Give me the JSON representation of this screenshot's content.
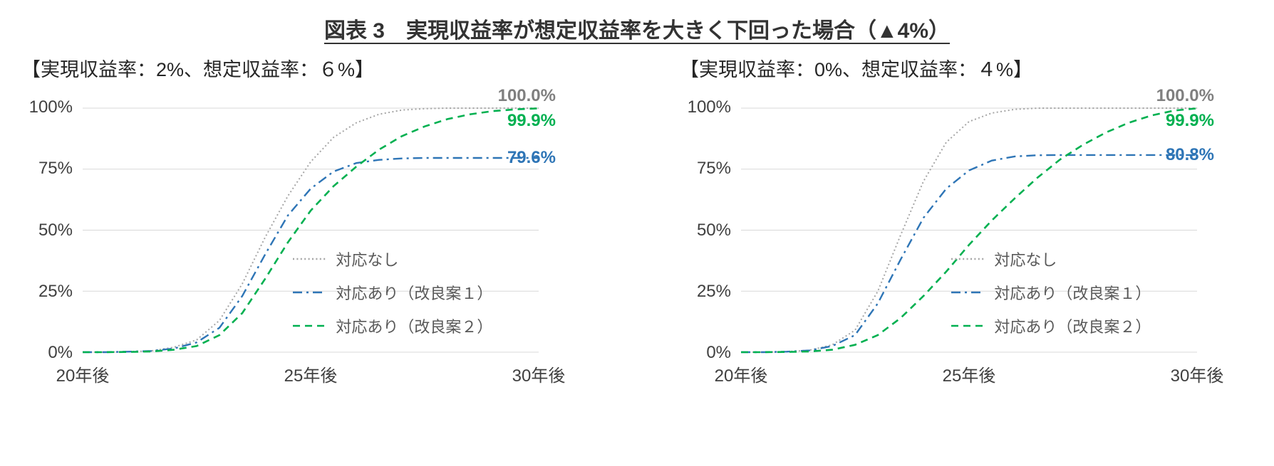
{
  "title": "図表 3　実現収益率が想定収益率を大きく下回った場合（▲4%）",
  "colors": {
    "grid": "#d9d9d9",
    "no_action_line": "#a6a6a6",
    "plan1_line": "#2e75b6",
    "plan2_line": "#00b050",
    "no_action_label": "#7f7f7f"
  },
  "panels": [
    {
      "subtitle": "【実現収益率：2%、想定収益率：６%】",
      "yticks": [
        "100%",
        "75%",
        "50%",
        "25%",
        "0%"
      ],
      "xticks": [
        "20年後",
        "25年後",
        "30年後"
      ],
      "end_labels": [
        {
          "text": "100.0%",
          "value": 100,
          "color": "#7f7f7f"
        },
        {
          "text": "99.9%",
          "value": 99.9,
          "color": "#00b050"
        },
        {
          "text": "79.6%",
          "value": 79.6,
          "color": "#2e75b6"
        }
      ],
      "chart_data": {
        "type": "line",
        "title": "【実現収益率：2%、想定収益率：６%】",
        "xlabel": "",
        "ylabel": "",
        "ylim": [
          0,
          100
        ],
        "y_format": "percent",
        "grid": true,
        "legend_position": "inside-lower-right",
        "x": [
          20,
          20.5,
          21,
          21.5,
          22,
          22.5,
          23,
          23.5,
          24,
          24.5,
          25,
          25.5,
          26,
          26.5,
          27,
          27.5,
          28,
          28.5,
          29,
          29.5,
          30
        ],
        "x_tick_labels": [
          "20年後",
          "25年後",
          "30年後"
        ],
        "series": [
          {
            "name": "対応なし",
            "key": "no-action",
            "style": "dotted",
            "color": "#a6a6a6",
            "final_value": 100.0,
            "values": [
              0,
              0,
              0.2,
              0.5,
              2,
              5,
              13,
              28,
              47,
              64,
              78,
              88,
              94,
              97.5,
              99.2,
              99.8,
              100,
              100,
              100,
              100,
              100
            ]
          },
          {
            "name": "対応あり（改良案１）",
            "key": "plan1",
            "style": "dashdot",
            "color": "#2e75b6",
            "final_value": 79.6,
            "values": [
              0,
              0,
              0.2,
              0.5,
              1.5,
              4,
              10,
              23,
              40,
              56,
              67,
              74,
              77.5,
              78.8,
              79.4,
              79.6,
              79.6,
              79.6,
              79.6,
              79.6,
              79.6
            ]
          },
          {
            "name": "対応あり（改良案２）",
            "key": "plan2",
            "style": "dashed",
            "color": "#00b050",
            "final_value": 99.9,
            "values": [
              0,
              0,
              0.1,
              0.3,
              1,
              2.5,
              7,
              16,
              30,
              45,
              58,
              68,
              76,
              83,
              88.5,
              92.5,
              95.5,
              97.5,
              98.8,
              99.5,
              99.9
            ]
          }
        ]
      }
    },
    {
      "subtitle": "【実現収益率：0%、想定収益率：４%】",
      "yticks": [
        "100%",
        "75%",
        "50%",
        "25%",
        "0%"
      ],
      "xticks": [
        "20年後",
        "25年後",
        "30年後"
      ],
      "end_labels": [
        {
          "text": "100.0%",
          "value": 100,
          "color": "#7f7f7f"
        },
        {
          "text": "99.9%",
          "value": 99.9,
          "color": "#00b050"
        },
        {
          "text": "80.8%",
          "value": 80.8,
          "color": "#2e75b6"
        }
      ],
      "chart_data": {
        "type": "line",
        "title": "【実現収益率：0%、想定収益率：４%】",
        "xlabel": "",
        "ylabel": "",
        "ylim": [
          0,
          100
        ],
        "y_format": "percent",
        "grid": true,
        "legend_position": "inside-lower-right",
        "x": [
          20,
          20.5,
          21,
          21.5,
          22,
          22.5,
          23,
          23.5,
          24,
          24.5,
          25,
          25.5,
          26,
          26.5,
          27,
          27.5,
          28,
          28.5,
          29,
          29.5,
          30
        ],
        "x_tick_labels": [
          "20年後",
          "25年後",
          "30年後"
        ],
        "series": [
          {
            "name": "対応なし",
            "key": "no-action",
            "style": "dotted",
            "color": "#a6a6a6",
            "final_value": 100.0,
            "values": [
              0,
              0,
              0.2,
              0.8,
              3,
              9,
              25,
              48,
              70,
              86,
              94.5,
              98,
              99.5,
              100,
              100,
              100,
              100,
              100,
              100,
              100,
              100
            ]
          },
          {
            "name": "対応あり（改良案１）",
            "key": "plan1",
            "style": "dashdot",
            "color": "#2e75b6",
            "final_value": 80.8,
            "values": [
              0,
              0,
              0.2,
              0.7,
              2.5,
              7,
              20,
              38,
              55,
              67,
              74.5,
              78.5,
              80.2,
              80.7,
              80.8,
              80.8,
              80.8,
              80.8,
              80.8,
              80.8,
              80.8
            ]
          },
          {
            "name": "対応あり（改良案２）",
            "key": "plan2",
            "style": "dashed",
            "color": "#00b050",
            "final_value": 99.9,
            "values": [
              0,
              0,
              0.1,
              0.3,
              1,
              3,
              7,
              14,
              23,
              33,
              44,
              54,
              63,
              71.5,
              79,
              85,
              90,
              94,
              97,
              99,
              99.9
            ]
          }
        ]
      }
    }
  ]
}
